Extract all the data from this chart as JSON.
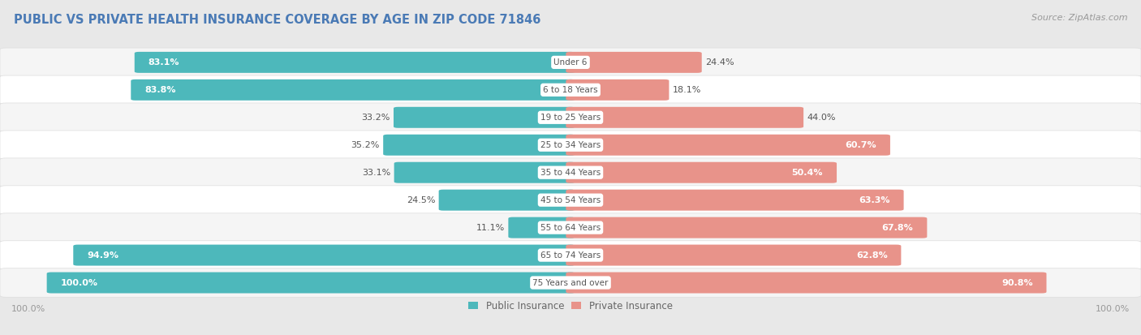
{
  "title": "PUBLIC VS PRIVATE HEALTH INSURANCE COVERAGE BY AGE IN ZIP CODE 71846",
  "source": "Source: ZipAtlas.com",
  "categories": [
    "Under 6",
    "6 to 18 Years",
    "19 to 25 Years",
    "25 to 34 Years",
    "35 to 44 Years",
    "45 to 54 Years",
    "55 to 64 Years",
    "65 to 74 Years",
    "75 Years and over"
  ],
  "public_values": [
    83.1,
    83.8,
    33.2,
    35.2,
    33.1,
    24.5,
    11.1,
    94.9,
    100.0
  ],
  "private_values": [
    24.4,
    18.1,
    44.0,
    60.7,
    50.4,
    63.3,
    67.8,
    62.8,
    90.8
  ],
  "public_color": "#4db8bb",
  "private_color": "#e8938a",
  "bg_color": "#e8e8e8",
  "row_bg_even": "#f5f5f5",
  "row_bg_odd": "#ffffff",
  "max_value": 100.0,
  "title_fontsize": 10.5,
  "bar_label_fontsize": 8.0,
  "cat_label_fontsize": 7.5,
  "legend_fontsize": 8.5,
  "source_fontsize": 8.0,
  "title_color": "#4a7ab5",
  "label_dark_color": "#555555",
  "label_white_color": "#ffffff",
  "source_color": "#999999",
  "legend_text_color": "#666666",
  "axis_label_color": "#999999"
}
